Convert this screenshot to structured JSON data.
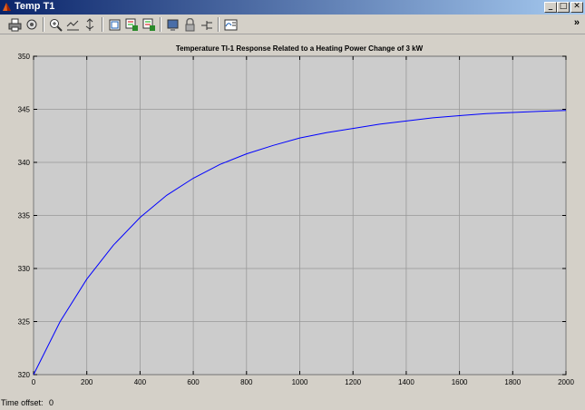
{
  "window": {
    "title": "Temp T1"
  },
  "window_controls": {
    "minimize": "_",
    "maximize": "□",
    "close": "✕"
  },
  "toolbar": {
    "items": [
      "print-icon",
      "print-preview-icon",
      "zoom-in-icon",
      "zoom-x-icon",
      "zoom-y-icon",
      "autoscale-icon",
      "save-axes-icon",
      "restore-axes-icon",
      "scope-params-icon",
      "lock-icon",
      "signal-selection-icon",
      "legend-icon"
    ],
    "overflow": "»"
  },
  "status": {
    "time_offset_label": "Time offset:",
    "time_offset_value": "0"
  },
  "colors": {
    "plot_bg": "#cccccc",
    "line": "#0000ff",
    "grid": "#999999"
  },
  "chart_data": {
    "type": "line",
    "title": "Temperature TI-1 Response Related to a Heating Power Change of 3 kW",
    "xlabel": "",
    "ylabel": "",
    "xlim": [
      0,
      2000
    ],
    "ylim": [
      320,
      350
    ],
    "xticks": [
      0,
      200,
      400,
      600,
      800,
      1000,
      1200,
      1400,
      1600,
      1800,
      2000
    ],
    "yticks": [
      320,
      325,
      330,
      335,
      340,
      345,
      350
    ],
    "grid": true,
    "series": [
      {
        "x": [
          0,
          100,
          200,
          300,
          400,
          500,
          600,
          700,
          800,
          900,
          1000,
          1100,
          1200,
          1300,
          1400,
          1500,
          1600,
          1700,
          1800,
          1900,
          2000
        ],
        "values": [
          320.0,
          325.0,
          329.0,
          332.2,
          334.8,
          336.9,
          338.5,
          339.8,
          340.8,
          341.6,
          342.3,
          342.8,
          343.2,
          343.6,
          343.9,
          344.2,
          344.4,
          344.6,
          344.7,
          344.8,
          344.9
        ]
      }
    ]
  }
}
